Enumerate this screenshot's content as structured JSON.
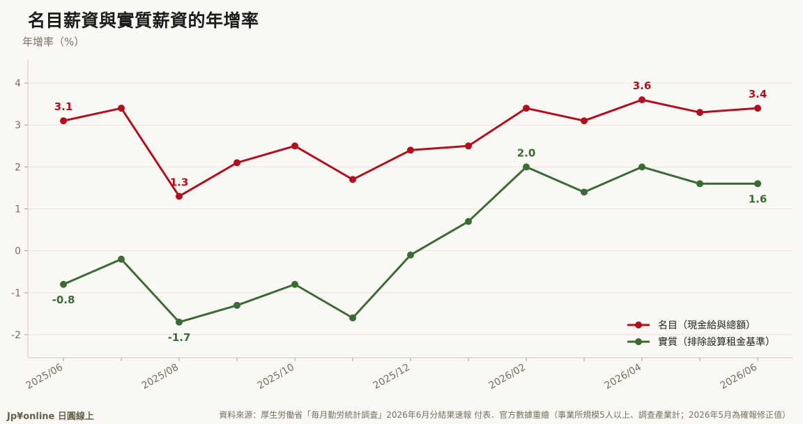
{
  "title": "名目薪資與實質薪資的年增率",
  "footer": {
    "brand": "Jp¥online 日圓線上",
    "source": "資料來源：厚生労働省「毎月勤労統計調査」2026年6月分結果速報 付表．官方數據重繪（事業所規模5人以上、調查產業計；2026年5月為確報修正值）"
  },
  "chart_data": {
    "type": "line",
    "title": "名目薪資與實質薪資的年增率",
    "ylabel": "年增率（%）",
    "xlabel": "",
    "ylim": [
      -2.55,
      4.55
    ],
    "yticks": [
      -2,
      -1,
      0,
      1,
      2,
      3,
      4
    ],
    "x": [
      "2025/06",
      "2025/07",
      "2025/08",
      "2025/09",
      "2025/10",
      "2025/11",
      "2025/12",
      "2026/01",
      "2026/02",
      "2026/03",
      "2026/04",
      "2026/05",
      "2026/06"
    ],
    "xtick_labels": [
      "2025/06",
      "",
      "2025/08",
      "",
      "2025/10",
      "",
      "2025/12",
      "",
      "2026/02",
      "",
      "2026/04",
      "",
      "2026/06"
    ],
    "grid": "horizontal",
    "legend_position": "bottom-right",
    "series": [
      {
        "name": "名目（現金給與總額）",
        "color": "#b0101e",
        "values": [
          3.1,
          3.4,
          1.3,
          2.1,
          2.5,
          1.7,
          2.4,
          2.5,
          3.4,
          3.1,
          3.6,
          3.3,
          3.4
        ],
        "labels": [
          {
            "index": 0,
            "text": "3.1",
            "position": "above"
          },
          {
            "index": 2,
            "text": "1.3",
            "position": "above"
          },
          {
            "index": 10,
            "text": "3.6",
            "position": "above"
          },
          {
            "index": 12,
            "text": "3.4",
            "position": "above"
          }
        ]
      },
      {
        "name": "實質（排除設算租金基準）",
        "color": "#3a6b35",
        "values": [
          -0.8,
          -0.2,
          -1.7,
          -1.3,
          -0.8,
          -1.6,
          -0.1,
          0.7,
          2.0,
          1.4,
          2.0,
          1.6,
          1.6
        ],
        "labels": [
          {
            "index": 0,
            "text": "-0.8",
            "position": "below"
          },
          {
            "index": 2,
            "text": "-1.7",
            "position": "below"
          },
          {
            "index": 8,
            "text": "2.0",
            "position": "above"
          },
          {
            "index": 12,
            "text": "1.6",
            "position": "below"
          }
        ]
      }
    ]
  }
}
